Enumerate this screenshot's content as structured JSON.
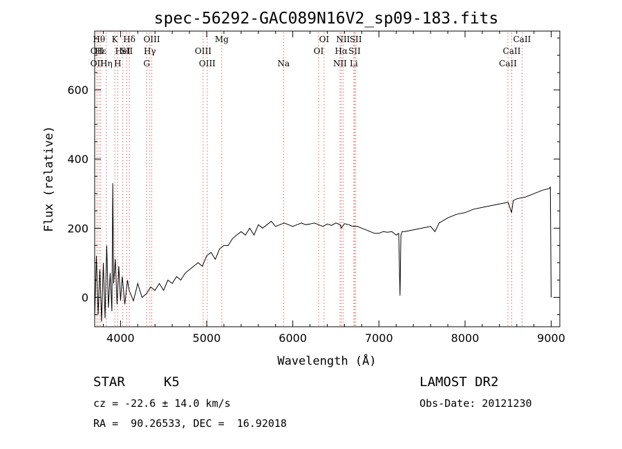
{
  "chart_data": {
    "type": "line",
    "title": "spec-56292-GAC089N16V2_sp09-183.fits",
    "xlabel": "Wavelength (Å)",
    "ylabel": "Flux (relative)",
    "xlim": [
      3700,
      9100
    ],
    "ylim": [
      -85,
      770
    ],
    "x_ticks": [
      4000,
      5000,
      6000,
      7000,
      8000,
      9000
    ],
    "y_ticks": [
      0,
      200,
      400,
      600
    ],
    "grid": false,
    "series": [
      {
        "x": [
          3700,
          3720,
          3740,
          3760,
          3780,
          3800,
          3820,
          3840,
          3860,
          3880,
          3900,
          3910,
          3920,
          3940,
          3960,
          3980,
          4000,
          4020,
          4050,
          4080,
          4100,
          4150,
          4200,
          4250,
          4300,
          4350,
          4400,
          4450,
          4500,
          4550,
          4600,
          4650,
          4700,
          4750,
          4800,
          4850,
          4900,
          4950,
          5000,
          5050,
          5100,
          5150,
          5200,
          5250,
          5300,
          5350,
          5400,
          5450,
          5500,
          5550,
          5600,
          5650,
          5700,
          5750,
          5800,
          5850,
          5900,
          5950,
          6000,
          6050,
          6100,
          6150,
          6200,
          6250,
          6300,
          6350,
          6400,
          6450,
          6500,
          6550,
          6563,
          6600,
          6650,
          6700,
          6750,
          6800,
          6850,
          6900,
          6950,
          7000,
          7050,
          7100,
          7150,
          7200,
          7230,
          7245,
          7255,
          7270,
          7300,
          7400,
          7500,
          7600,
          7650,
          7700,
          7800,
          7900,
          8000,
          8100,
          8200,
          8300,
          8400,
          8500,
          8540,
          8560,
          8600,
          8700,
          8800,
          8900,
          8980,
          8990,
          9000
        ],
        "y": [
          -60,
          120,
          -50,
          80,
          -70,
          100,
          -60,
          150,
          -30,
          70,
          -40,
          330,
          40,
          110,
          -20,
          90,
          -10,
          60,
          -20,
          50,
          20,
          -10,
          40,
          0,
          10,
          30,
          20,
          40,
          20,
          50,
          40,
          60,
          50,
          70,
          80,
          90,
          100,
          90,
          120,
          130,
          110,
          140,
          150,
          150,
          170,
          180,
          190,
          180,
          200,
          180,
          210,
          200,
          210,
          220,
          205,
          210,
          215,
          210,
          205,
          210,
          215,
          210,
          212,
          215,
          210,
          205,
          212,
          208,
          215,
          210,
          200,
          213,
          210,
          205,
          205,
          200,
          195,
          190,
          185,
          185,
          190,
          188,
          190,
          180,
          185,
          5,
          180,
          190,
          190,
          195,
          200,
          205,
          190,
          215,
          230,
          240,
          245,
          255,
          260,
          265,
          270,
          275,
          245,
          280,
          285,
          290,
          300,
          310,
          315,
          320,
          0
        ]
      }
    ],
    "spectral_lines": [
      {
        "w": 3750,
        "name": "Hθ",
        "row": 0
      },
      {
        "w": 3727,
        "name": "OII",
        "row": 1
      },
      {
        "w": 3770,
        "name": "Hε",
        "row": 1
      },
      {
        "w": 3727,
        "name": "OII",
        "row": 2
      },
      {
        "w": 3835,
        "name": "Hη",
        "row": 2
      },
      {
        "w": 3934,
        "name": "K",
        "row": 0
      },
      {
        "w": 3968,
        "name": "H",
        "row": 2
      },
      {
        "w": 4026,
        "name": "HeI",
        "row": 1
      },
      {
        "w": 4072,
        "name": "SII",
        "row": 1
      },
      {
        "w": 4102,
        "name": "Hδ",
        "row": 0
      },
      {
        "w": 4304,
        "name": "G",
        "row": 2
      },
      {
        "w": 4340,
        "name": "Hγ",
        "row": 1
      },
      {
        "w": 4363,
        "name": "OIII",
        "row": 0
      },
      {
        "w": 4959,
        "name": "OIII",
        "row": 1
      },
      {
        "w": 5007,
        "name": "OIII",
        "row": 2
      },
      {
        "w": 5175,
        "name": "Mg",
        "row": 0
      },
      {
        "w": 5893,
        "name": "Na",
        "row": 2
      },
      {
        "w": 6300,
        "name": "OI",
        "row": 1
      },
      {
        "w": 6364,
        "name": "OI",
        "row": 0
      },
      {
        "w": 6548,
        "name": "NII",
        "row": 2
      },
      {
        "w": 6563,
        "name": "Hα",
        "row": 1
      },
      {
        "w": 6584,
        "name": "NII",
        "row": 0
      },
      {
        "w": 6708,
        "name": "Li",
        "row": 2
      },
      {
        "w": 6717,
        "name": "SII",
        "row": 1
      },
      {
        "w": 6731,
        "name": "SII",
        "row": 0
      },
      {
        "w": 8498,
        "name": "CaII",
        "row": 2
      },
      {
        "w": 8542,
        "name": "CaII",
        "row": 1
      },
      {
        "w": 8662,
        "name": "CaII",
        "row": 0
      }
    ]
  },
  "info": {
    "object_class": "STAR",
    "subclass": "K5",
    "survey": "LAMOST DR2",
    "redshift": "cz = -22.6 ± 14.0 km/s",
    "obs_date": "Obs-Date: 20121230",
    "coords": "RA =  90.26533, DEC =  16.92018"
  },
  "colors": {
    "line_marker": "#e06060",
    "spectrum": "#000000"
  }
}
